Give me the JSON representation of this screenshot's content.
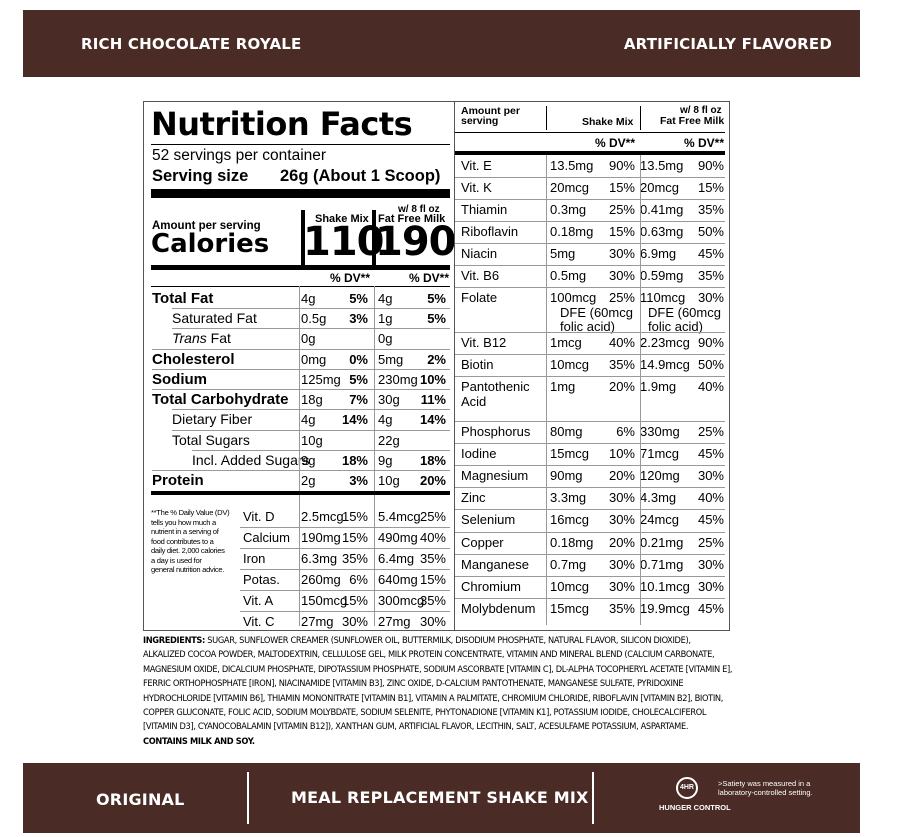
{
  "header": {
    "left": "RICH CHOCOLATE ROYALE",
    "right": "ARTIFICIALLY FLAVORED"
  },
  "facts": {
    "title": "Nutrition Facts",
    "servings": "52 servings per container",
    "serving_size_label": "Serving size",
    "serving_size_value": "26g (About 1 Scoop)",
    "amount_per_serving": "Amount per serving",
    "calories_label": "Calories",
    "col1_label": "Shake Mix",
    "col2_label_line1": "w/ 8 fl oz",
    "col2_label_line2": "Fat Free Milk",
    "cal1": "110",
    "cal2": "190",
    "dv_header": "% DV**",
    "rows": [
      {
        "label": "Total Fat",
        "a1": "4g",
        "d1": "5%",
        "a2": "4g",
        "d2": "5%"
      },
      {
        "label": "Saturated Fat",
        "a1": "0.5g",
        "d1": "3%",
        "a2": "1g",
        "d2": "5%"
      },
      {
        "label_italic": "Trans",
        "label_rest": " Fat",
        "a1": "0g",
        "d1": "",
        "a2": "0g",
        "d2": ""
      },
      {
        "label": "Cholesterol",
        "a1": "0mg",
        "d1": "0%",
        "a2": "5mg",
        "d2": "2%"
      },
      {
        "label": "Sodium",
        "a1": "125mg",
        "d1": "5%",
        "a2": "230mg",
        "d2": "10%"
      },
      {
        "label": "Total Carbohydrate",
        "a1": "18g",
        "d1": "7%",
        "a2": "30g",
        "d2": "11%"
      },
      {
        "label": "Dietary Fiber",
        "a1": "4g",
        "d1": "14%",
        "a2": "4g",
        "d2": "14%"
      },
      {
        "label": "Total Sugars",
        "a1": "10g",
        "d1": "",
        "a2": "22g",
        "d2": ""
      },
      {
        "label": "Incl. Added Sugars",
        "a1": "9g",
        "d1": "18%",
        "a2": "9g",
        "d2": "18%"
      },
      {
        "label": "Protein",
        "a1": "2g",
        "d1": "3%",
        "a2": "10g",
        "d2": "20%"
      }
    ],
    "footnote": [
      "**The % Daily Value (DV)",
      "tells you how much a",
      "nutrient in a serving of",
      "food contributes to a",
      "daily diet. 2,000 calories",
      "a day is used for",
      "general nutrition advice."
    ],
    "vitamins": [
      {
        "label": "Vit. D",
        "a1": "2.5mcg",
        "d1": "15%",
        "a2": "5.4mcg",
        "d2": "25%"
      },
      {
        "label": "Calcium",
        "a1": "190mg",
        "d1": "15%",
        "a2": "490mg",
        "d2": "40%"
      },
      {
        "label": "Iron",
        "a1": "6.3mg",
        "d1": "35%",
        "a2": "6.4mg",
        "d2": "35%"
      },
      {
        "label": "Potas.",
        "a1": "260mg",
        "d1": "6%",
        "a2": "640mg",
        "d2": "15%"
      },
      {
        "label": "Vit. A",
        "a1": "150mcg",
        "d1": "15%",
        "a2": "300mcg",
        "d2": "35%"
      },
      {
        "label": "Vit. C",
        "a1": "27mg",
        "d1": "30%",
        "a2": "27mg",
        "d2": "30%"
      }
    ]
  },
  "right": {
    "h_amount_1": "Amount per",
    "h_amount_2": "serving",
    "h_col1": "Shake Mix",
    "h_col2_1": "w/ 8 fl oz",
    "h_col2_2": "Fat Free Milk",
    "dv": "% DV**",
    "rows": [
      {
        "label": "Vit. E",
        "a1": "13.5mg",
        "d1": "90%",
        "a2": "13.5mg",
        "d2": "90%"
      },
      {
        "label": "Vit. K",
        "a1": "20mcg",
        "d1": "15%",
        "a2": "20mcg",
        "d2": "15%"
      },
      {
        "label": "Thiamin",
        "a1": "0.3mg",
        "d1": "25%",
        "a2": "0.41mg",
        "d2": "35%"
      },
      {
        "label": "Riboflavin",
        "a1": "0.18mg",
        "d1": "15%",
        "a2": "0.63mg",
        "d2": "50%"
      },
      {
        "label": "Niacin",
        "a1": "5mg",
        "d1": "30%",
        "a2": "6.9mg",
        "d2": "45%"
      },
      {
        "label": "Vit. B6",
        "a1": "0.5mg",
        "d1": "30%",
        "a2": "0.59mg",
        "d2": "35%"
      },
      {
        "label": "Folate",
        "a1": "100mcg",
        "a1b": "DFE (60mcg",
        "a1c": "folic acid)",
        "d1": "25%",
        "a2": "110mcg",
        "a2b": "DFE (60mcg",
        "a2c": "folic acid)",
        "d2": "30%"
      },
      {
        "label": "Vit. B12",
        "a1": "1mcg",
        "d1": "40%",
        "a2": "2.23mcg",
        "d2": "90%"
      },
      {
        "label": "Biotin",
        "a1": "10mcg",
        "d1": "35%",
        "a2": "14.9mcg",
        "d2": "50%"
      },
      {
        "label": "Pantothenic",
        "label2": "Acid",
        "a1": "1mg",
        "d1": "20%",
        "a2": "1.9mg",
        "d2": "40%"
      },
      {
        "label": "Phosphorus",
        "a1": "80mg",
        "d1": "6%",
        "a2": "330mg",
        "d2": "25%"
      },
      {
        "label": "Iodine",
        "a1": "15mcg",
        "d1": "10%",
        "a2": "71mcg",
        "d2": "45%"
      },
      {
        "label": "Magnesium",
        "a1": "90mg",
        "d1": "20%",
        "a2": "120mg",
        "d2": "30%"
      },
      {
        "label": "Zinc",
        "a1": "3.3mg",
        "d1": "30%",
        "a2": "4.3mg",
        "d2": "40%"
      },
      {
        "label": "Selenium",
        "a1": "16mcg",
        "d1": "30%",
        "a2": "24mcg",
        "d2": "45%"
      },
      {
        "label": "Copper",
        "a1": "0.18mg",
        "d1": "20%",
        "a2": "0.21mg",
        "d2": "25%"
      },
      {
        "label": "Manganese",
        "a1": "0.7mg",
        "d1": "30%",
        "a2": "0.71mg",
        "d2": "30%"
      },
      {
        "label": "Chromium",
        "a1": "10mcg",
        "d1": "30%",
        "a2": "10.1mcg",
        "d2": "30%"
      },
      {
        "label": "Molybdenum",
        "a1": "15mcg",
        "d1": "35%",
        "a2": "19.9mcg",
        "d2": "45%"
      }
    ]
  },
  "ingredients": {
    "label": "INGREDIENTS:",
    "text": " SUGAR, SUNFLOWER CREAMER (SUNFLOWER OIL, BUTTERMILK, DISODIUM PHOSPHATE, NATURAL FLAVOR, SILICON DIOXIDE), ALKALIZED COCOA POWDER, MALTODEXTRIN, CELLULOSE GEL, MILK PROTEIN CONCENTRATE, VITAMIN AND MINERAL BLEND (CALCIUM CARBONATE, MAGNESIUM OXIDE, DICALCIUM PHOSPHATE, DIPOTASSIUM PHOSPHATE, SODIUM ASCORBATE [VITAMIN C], DL-ALPHA TOCOPHERYL ACETATE [VITAMIN E], FERRIC ORTHOPHOSPHATE [IRON], NIACINAMIDE [VITAMIN B3], ZINC OXIDE, D-CALCIUM PANTOTHENATE, MANGANESE SULFATE, PYRIDOXINE HYDROCHLORIDE [VITAMIN B6], THIAMIN MONONITRATE [VITAMIN B1], VITAMIN A PALMITATE, CHROMIUM CHLORIDE, RIBOFLAVIN [VITAMIN B2], BIOTIN, COPPER GLUCONATE, FOLIC ACID, SODIUM MOLYBDATE, SODIUM SELENITE, PHYTONADIONE [VITAMIN K1], POTASSIUM IODIDE, CHOLECALCIFEROL [VITAMIN D3], CYANOCOBALAMIN [VITAMIN B12]), XANTHAN GUM, ARTIFICIAL FLAVOR, LECITHIN, SALT, ACESULFAME POTASSIUM, ASPARTAME.",
    "contains": "CONTAINS MILK AND SOY."
  },
  "footer": {
    "left": "ORIGINAL",
    "center": "MEAL REPLACEMENT SHAKE MIX",
    "badge_top": "4HR",
    "badge_label": "HUNGER CONTROL",
    "badge_note": ">Satiety was measured in a laboratory-controlled setting."
  }
}
